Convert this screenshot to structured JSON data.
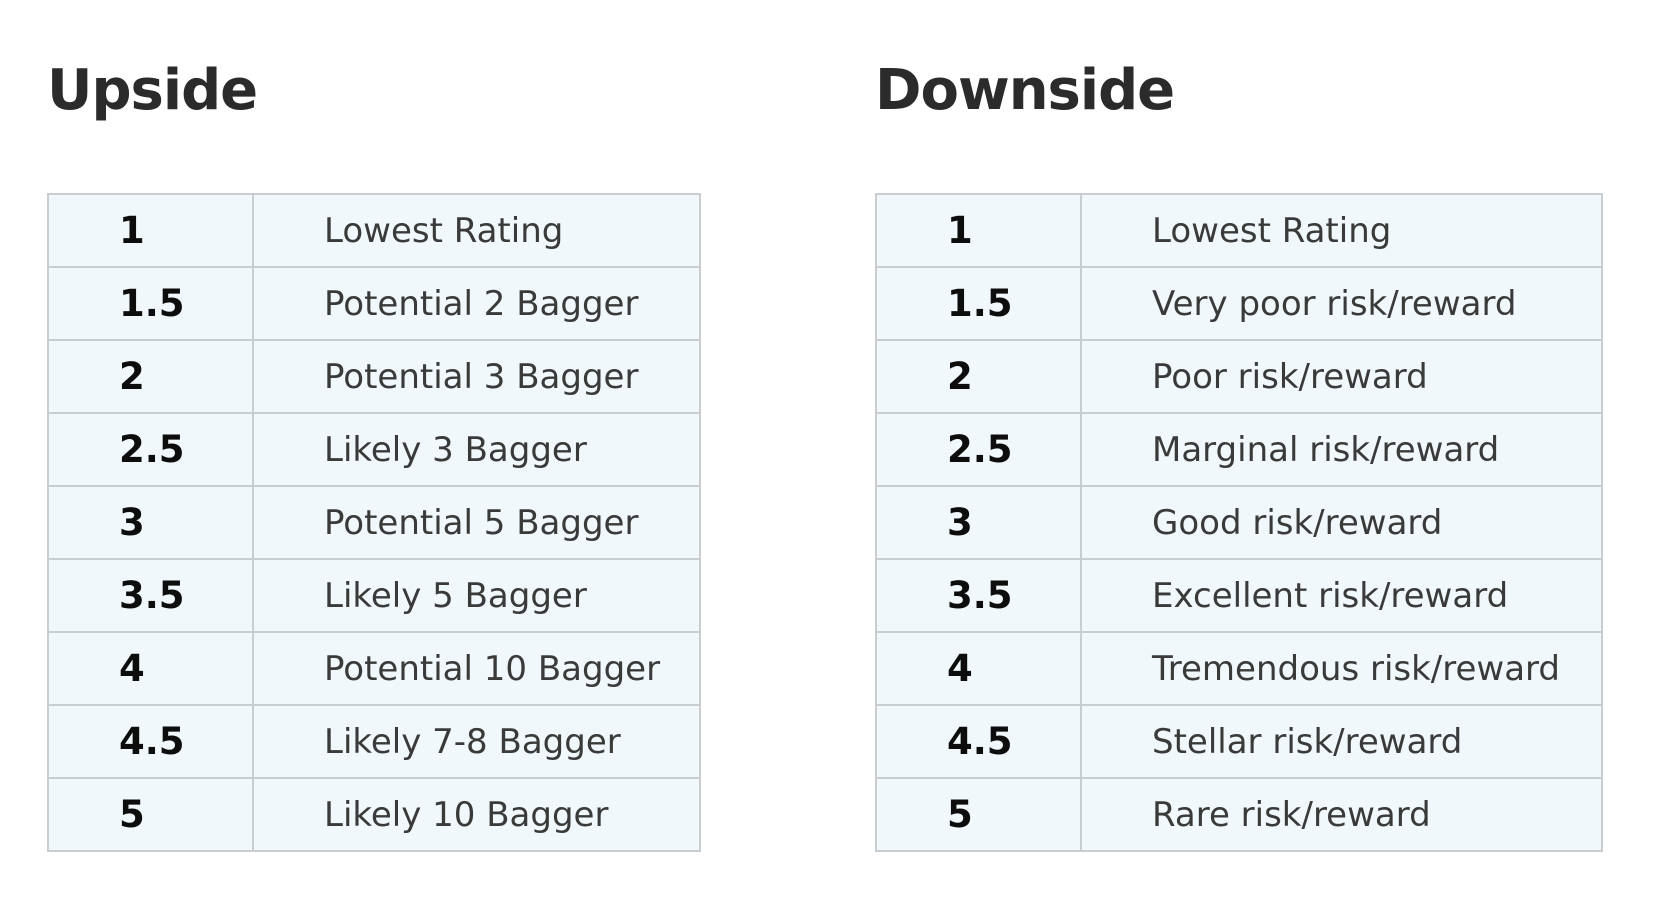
{
  "colors": {
    "page_bg": "#ffffff",
    "cell_bg": "#f0f8fb",
    "border": "#c9cdd0",
    "heading_text": "#2b2b2b",
    "value_text": "#0d0d0d",
    "label_text": "#3a3a3a"
  },
  "tables": [
    {
      "title": "Upside",
      "columns": [
        "rating",
        "description"
      ],
      "rows": [
        {
          "rating": "1",
          "label": "Lowest Rating"
        },
        {
          "rating": "1.5",
          "label": "Potential 2 Bagger"
        },
        {
          "rating": "2",
          "label": "Potential 3 Bagger"
        },
        {
          "rating": "2.5",
          "label": "Likely 3 Bagger"
        },
        {
          "rating": "3",
          "label": "Potential 5 Bagger"
        },
        {
          "rating": "3.5",
          "label": "Likely 5 Bagger"
        },
        {
          "rating": "4",
          "label": "Potential 10 Bagger"
        },
        {
          "rating": "4.5",
          "label": "Likely 7-8 Bagger"
        },
        {
          "rating": "5",
          "label": "Likely 10 Bagger"
        }
      ]
    },
    {
      "title": "Downside",
      "columns": [
        "rating",
        "description"
      ],
      "rows": [
        {
          "rating": "1",
          "label": "Lowest Rating"
        },
        {
          "rating": "1.5",
          "label": "Very poor risk/reward"
        },
        {
          "rating": "2",
          "label": "Poor risk/reward"
        },
        {
          "rating": "2.5",
          "label": "Marginal risk/reward"
        },
        {
          "rating": "3",
          "label": "Good risk/reward"
        },
        {
          "rating": "3.5",
          "label": "Excellent risk/reward"
        },
        {
          "rating": "4",
          "label": "Tremendous risk/reward"
        },
        {
          "rating": "4.5",
          "label": "Stellar risk/reward"
        },
        {
          "rating": "5",
          "label": "Rare risk/reward"
        }
      ]
    }
  ]
}
